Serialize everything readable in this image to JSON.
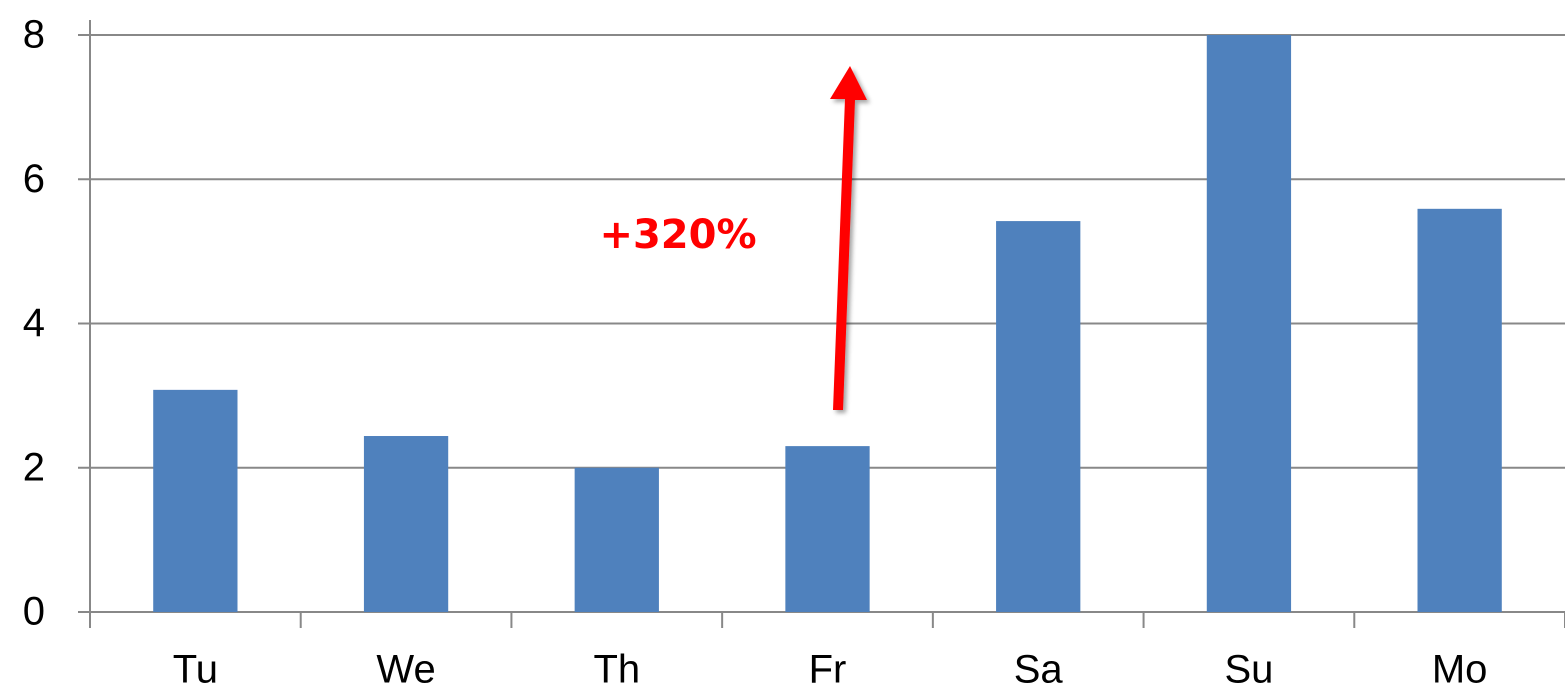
{
  "chart_data": {
    "type": "bar",
    "categories": [
      "Tu",
      "We",
      "Th",
      "Fr",
      "Sa",
      "Su",
      "Mo"
    ],
    "values": [
      3.08,
      2.44,
      2.0,
      2.3,
      5.42,
      8.0,
      5.59
    ],
    "color": "#4f81bd",
    "ylim": [
      0,
      8
    ],
    "yticks": [
      0,
      2,
      4,
      6,
      8
    ],
    "grid": true,
    "annotation": "+320%"
  }
}
